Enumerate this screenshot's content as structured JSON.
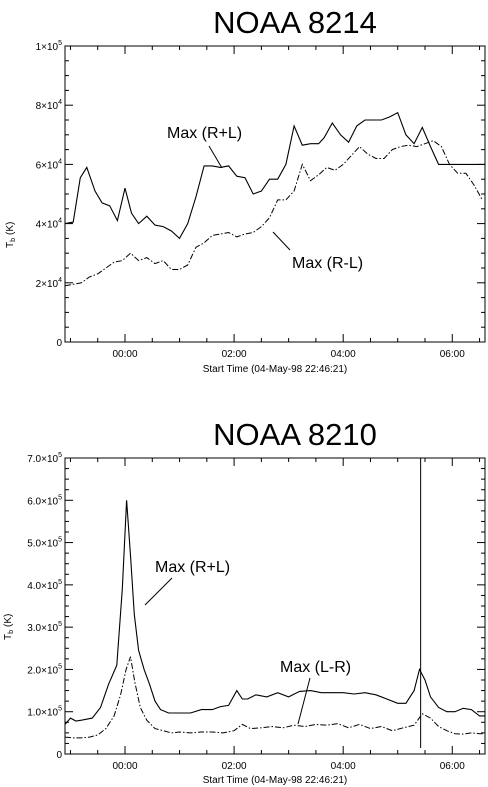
{
  "chart_data": [
    {
      "type": "line",
      "title": "NOAA 8214",
      "xlabel": "Start Time (04-May-98 22:46:21)",
      "ylabel_main": "T",
      "ylabel_sub": "b",
      "ylabel_unit": "(K)",
      "xlim_hours": [
        -1.1,
        6.6
      ],
      "ylim": [
        0,
        100000
      ],
      "x_ticks": [
        {
          "value": 0,
          "label": "00:00"
        },
        {
          "value": 2,
          "label": "02:00"
        },
        {
          "value": 4,
          "label": "04:00"
        },
        {
          "value": 6,
          "label": "06:00"
        }
      ],
      "y_ticks": [
        {
          "value": 0,
          "base": "0",
          "exp": ""
        },
        {
          "value": 20000,
          "base": "2×10",
          "exp": "4"
        },
        {
          "value": 40000,
          "base": "4×10",
          "exp": "4"
        },
        {
          "value": 60000,
          "base": "6×10",
          "exp": "4"
        },
        {
          "value": 80000,
          "base": "8×10",
          "exp": "4"
        },
        {
          "value": 100000,
          "base": "1×10",
          "exp": "5"
        }
      ],
      "series": [
        {
          "name": "Max (R+L)",
          "style": "solid",
          "x": [
            -1.1,
            -0.95,
            -0.82,
            -0.7,
            -0.55,
            -0.42,
            -0.28,
            -0.14,
            0.0,
            0.12,
            0.25,
            0.4,
            0.55,
            0.7,
            0.85,
            1.0,
            1.15,
            1.3,
            1.45,
            1.6,
            1.75,
            1.9,
            2.05,
            2.2,
            2.35,
            2.5,
            2.65,
            2.8,
            2.95,
            3.1,
            3.25,
            3.4,
            3.55,
            3.65,
            3.8,
            3.95,
            4.1,
            4.25,
            4.4,
            4.55,
            4.7,
            4.85,
            5.0,
            5.15,
            5.3,
            5.45,
            5.6,
            5.75,
            5.9,
            6.05,
            6.2,
            6.35,
            6.5,
            6.6
          ],
          "y": [
            40000,
            40500,
            55500,
            59000,
            51000,
            47000,
            46000,
            41000,
            52000,
            43500,
            40000,
            42500,
            39500,
            39000,
            37500,
            35000,
            40000,
            49000,
            59500,
            59500,
            59000,
            59500,
            56000,
            55500,
            50000,
            51000,
            55000,
            55000,
            60000,
            73000,
            66500,
            67000,
            67000,
            69000,
            74000,
            70000,
            67500,
            73000,
            75000,
            75000,
            75000,
            76000,
            77500,
            70000,
            67000,
            72500,
            66000,
            60000,
            60000,
            60000,
            60000,
            60000,
            60000,
            60000
          ],
          "label_text": "Max (R+L)"
        },
        {
          "name": "Max (R-L)",
          "style": "dashdot",
          "x": [
            -1.1,
            -0.95,
            -0.8,
            -0.65,
            -0.5,
            -0.35,
            -0.2,
            -0.05,
            0.1,
            0.25,
            0.4,
            0.55,
            0.7,
            0.85,
            1.0,
            1.15,
            1.3,
            1.45,
            1.6,
            1.75,
            1.9,
            2.05,
            2.2,
            2.35,
            2.5,
            2.65,
            2.8,
            2.95,
            3.1,
            3.25,
            3.4,
            3.55,
            3.7,
            3.85,
            4.0,
            4.15,
            4.3,
            4.45,
            4.6,
            4.75,
            4.9,
            5.05,
            5.2,
            5.35,
            5.5,
            5.65,
            5.8,
            5.95,
            6.1,
            6.25,
            6.4,
            6.55
          ],
          "y": [
            19000,
            19500,
            20000,
            22000,
            23000,
            25000,
            27000,
            27500,
            30000,
            27500,
            28500,
            26500,
            27500,
            24500,
            24500,
            26000,
            32000,
            33500,
            36000,
            36500,
            37000,
            35500,
            36500,
            37000,
            39000,
            42000,
            48000,
            48000,
            51000,
            60000,
            54500,
            56500,
            59000,
            58000,
            60000,
            63000,
            66000,
            63500,
            62000,
            62000,
            65000,
            66000,
            66500,
            66000,
            67000,
            68000,
            66000,
            60000,
            57000,
            57000,
            53000,
            48000
          ],
          "label_text": "Max (R-L)"
        }
      ]
    },
    {
      "type": "line",
      "title": "NOAA 8210",
      "xlabel": "Start Time (04-May-98 22:46:21)",
      "ylabel_main": "T",
      "ylabel_sub": "b",
      "ylabel_unit": "(K)",
      "xlim_hours": [
        -1.1,
        6.6
      ],
      "ylim": [
        0,
        700000
      ],
      "x_ticks": [
        {
          "value": 0,
          "label": "00:00"
        },
        {
          "value": 2,
          "label": "02:00"
        },
        {
          "value": 4,
          "label": "04:00"
        },
        {
          "value": 6,
          "label": "06:00"
        }
      ],
      "y_ticks": [
        {
          "value": 0,
          "base": "0",
          "exp": ""
        },
        {
          "value": 100000,
          "base": "1.0×10",
          "exp": "5"
        },
        {
          "value": 200000,
          "base": "2.0×10",
          "exp": "5"
        },
        {
          "value": 300000,
          "base": "3.0×10",
          "exp": "5"
        },
        {
          "value": 400000,
          "base": "4.0×10",
          "exp": "5"
        },
        {
          "value": 500000,
          "base": "5.0×10",
          "exp": "5"
        },
        {
          "value": 600000,
          "base": "6.0×10",
          "exp": "5"
        },
        {
          "value": 700000,
          "base": "7.0×10",
          "exp": "5"
        }
      ],
      "series": [
        {
          "name": "Max (R+L)",
          "style": "solid",
          "x": [
            -1.1,
            -1.0,
            -0.9,
            -0.8,
            -0.6,
            -0.45,
            -0.3,
            -0.15,
            -0.05,
            0.03,
            0.1,
            0.17,
            0.25,
            0.35,
            0.45,
            0.55,
            0.65,
            0.8,
            1.0,
            1.2,
            1.4,
            1.6,
            1.75,
            1.9,
            2.05,
            2.15,
            2.25,
            2.4,
            2.6,
            2.8,
            3.0,
            3.2,
            3.4,
            3.6,
            3.8,
            4.0,
            4.2,
            4.4,
            4.6,
            4.8,
            5.0,
            5.15,
            5.3,
            5.4,
            5.5,
            5.6,
            5.75,
            5.9,
            6.05,
            6.2,
            6.35,
            6.5,
            6.6
          ],
          "y": [
            70000,
            85000,
            78000,
            80000,
            85000,
            110000,
            165000,
            210000,
            390000,
            600000,
            470000,
            330000,
            245000,
            200000,
            165000,
            125000,
            105000,
            97000,
            97000,
            97000,
            105000,
            105000,
            112000,
            115000,
            150000,
            130000,
            130000,
            140000,
            135000,
            145000,
            135000,
            148000,
            150000,
            145000,
            145000,
            145000,
            142000,
            145000,
            140000,
            130000,
            120000,
            120000,
            150000,
            200000,
            175000,
            135000,
            110000,
            100000,
            100000,
            108000,
            105000,
            90000,
            90000
          ],
          "label_text": "Max (R+L)"
        },
        {
          "name": "Max (L-R)",
          "style": "dashdot",
          "x": [
            -1.1,
            -0.95,
            -0.8,
            -0.65,
            -0.5,
            -0.35,
            -0.2,
            -0.08,
            0.02,
            0.1,
            0.18,
            0.28,
            0.4,
            0.55,
            0.7,
            0.85,
            1.0,
            1.2,
            1.4,
            1.6,
            1.8,
            2.0,
            2.15,
            2.3,
            2.5,
            2.7,
            2.9,
            3.1,
            3.3,
            3.5,
            3.7,
            3.9,
            4.1,
            4.3,
            4.5,
            4.7,
            4.9,
            5.1,
            5.3,
            5.45,
            5.6,
            5.75,
            5.9,
            6.05,
            6.2,
            6.35,
            6.5,
            6.6
          ],
          "y": [
            40000,
            38000,
            38000,
            40000,
            45000,
            60000,
            90000,
            140000,
            200000,
            230000,
            170000,
            110000,
            80000,
            60000,
            55000,
            50000,
            52000,
            50000,
            52000,
            52000,
            50000,
            55000,
            70000,
            60000,
            62000,
            65000,
            62000,
            68000,
            65000,
            70000,
            68000,
            72000,
            62000,
            70000,
            60000,
            65000,
            55000,
            62000,
            68000,
            95000,
            85000,
            65000,
            55000,
            48000,
            47000,
            50000,
            48000,
            48000
          ],
          "label_text": "Max (L-R)"
        }
      ],
      "vertical_marker_hours": 5.42
    }
  ]
}
